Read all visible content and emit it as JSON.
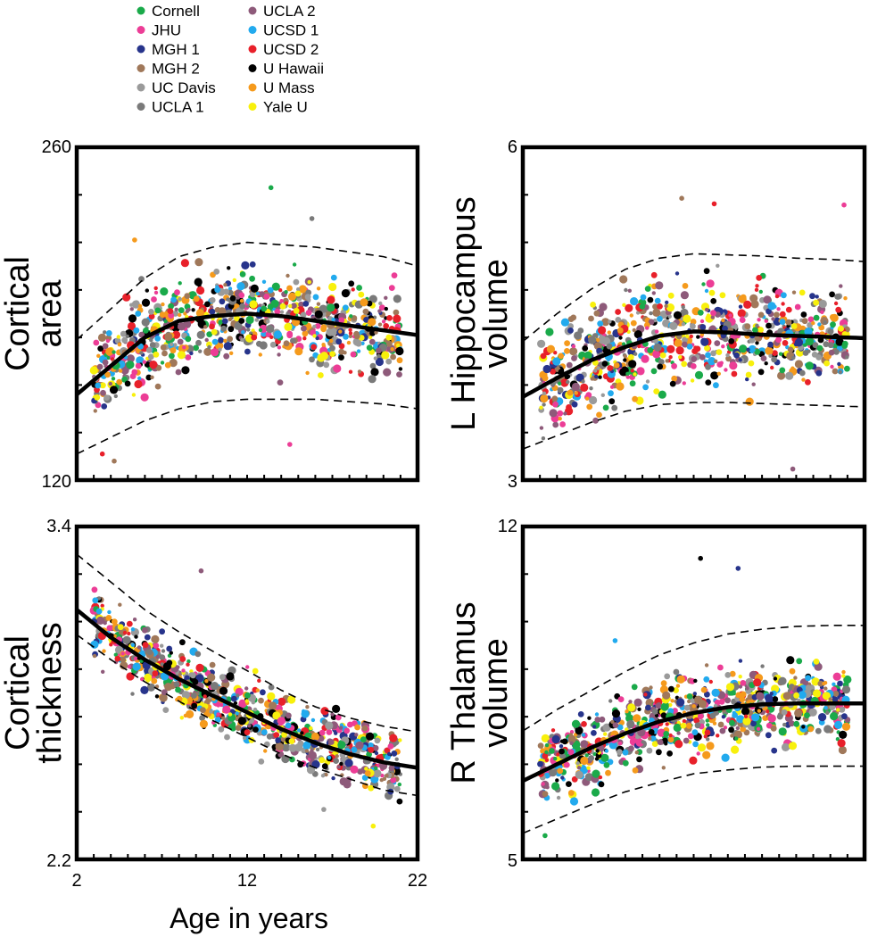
{
  "legend": [
    {
      "label": "Cornell",
      "color": "#1aaa4a"
    },
    {
      "label": "JHU",
      "color": "#ec3d96"
    },
    {
      "label": "MGH 1",
      "color": "#27348b"
    },
    {
      "label": "MGH 2",
      "color": "#a0785a"
    },
    {
      "label": "UC Davis",
      "color": "#9a9a9a"
    },
    {
      "label": "UCLA 1",
      "color": "#7a7a7a"
    },
    {
      "label": "UCLA 2",
      "color": "#8e5a7a"
    },
    {
      "label": "UCSD 1",
      "color": "#22aaee"
    },
    {
      "label": "UCSD 2",
      "color": "#e8202a"
    },
    {
      "label": "U Hawaii",
      "color": "#000000"
    },
    {
      "label": "U Mass",
      "color": "#f59a1c"
    },
    {
      "label": "Yale U",
      "color": "#f8f00c"
    }
  ],
  "xlabel": "Age in years",
  "chart_data": [
    {
      "type": "scatter",
      "title": "",
      "ylabel_lines": [
        "Cortical",
        "area"
      ],
      "xlim": [
        2,
        22
      ],
      "ylim": [
        120,
        260
      ],
      "y_tick_labels": [
        "120",
        "260"
      ],
      "x_tick_labels": [],
      "fit": {
        "x": [
          2,
          4,
          6,
          8,
          10,
          12,
          14,
          16,
          18,
          20,
          22
        ],
        "median": [
          156,
          168,
          180,
          187,
          189,
          190,
          189,
          187,
          185,
          183,
          181
        ],
        "lower": [
          131,
          138,
          145,
          150,
          153,
          154,
          154,
          154,
          153,
          152,
          150
        ],
        "upper": [
          179,
          192,
          205,
          214,
          218,
          220,
          219,
          218,
          216,
          214,
          210
        ]
      },
      "scatter": {
        "age_range": [
          3,
          21
        ],
        "spread": 10,
        "outliers": [
          [
            13.4,
            243
          ],
          [
            15.8,
            230
          ],
          [
            5.4,
            221
          ],
          [
            4.2,
            128
          ],
          [
            3.5,
            131
          ],
          [
            14.5,
            135
          ]
        ]
      }
    },
    {
      "type": "scatter",
      "title": "",
      "ylabel_lines": [
        "L Hippocampus",
        "volume"
      ],
      "xlim": [
        2,
        22
      ],
      "ylim": [
        3,
        6
      ],
      "y_tick_labels": [
        "3",
        "6"
      ],
      "x_tick_labels": [],
      "fit": {
        "x": [
          2,
          4,
          6,
          8,
          10,
          12,
          14,
          16,
          18,
          20,
          22
        ],
        "median": [
          3.75,
          3.92,
          4.08,
          4.2,
          4.3,
          4.34,
          4.33,
          4.31,
          4.3,
          4.29,
          4.28
        ],
        "lower": [
          3.28,
          3.4,
          3.52,
          3.62,
          3.68,
          3.7,
          3.7,
          3.69,
          3.68,
          3.67,
          3.66
        ],
        "upper": [
          4.25,
          4.5,
          4.72,
          4.9,
          5.0,
          5.04,
          5.03,
          5.02,
          5.0,
          4.99,
          4.97
        ]
      },
      "scatter": {
        "age_range": [
          3,
          21
        ],
        "spread": 0.24,
        "outliers": [
          [
            11.3,
            5.54
          ],
          [
            13.2,
            5.49
          ],
          [
            20.8,
            5.48
          ],
          [
            17.8,
            3.1
          ]
        ]
      }
    },
    {
      "type": "scatter",
      "title": "",
      "ylabel_lines": [
        "Cortical",
        "thickness"
      ],
      "xlim": [
        2,
        22
      ],
      "ylim": [
        2.2,
        3.4
      ],
      "y_tick_labels": [
        "2.2",
        "3.4"
      ],
      "x_tick_labels": [
        "2",
        "12",
        "22"
      ],
      "fit": {
        "x": [
          2,
          4,
          6,
          8,
          10,
          12,
          14,
          16,
          18,
          20,
          22
        ],
        "median": [
          3.1,
          3.0,
          2.92,
          2.85,
          2.79,
          2.73,
          2.67,
          2.62,
          2.58,
          2.55,
          2.53
        ],
        "lower": [
          3.01,
          2.92,
          2.84,
          2.77,
          2.7,
          2.64,
          2.58,
          2.53,
          2.49,
          2.45,
          2.43
        ],
        "upper": [
          3.3,
          3.2,
          3.1,
          3.02,
          2.95,
          2.88,
          2.81,
          2.75,
          2.71,
          2.68,
          2.66
        ]
      },
      "scatter": {
        "age_range": [
          3,
          21
        ],
        "spread": 0.065,
        "outliers": [
          [
            9.3,
            3.24
          ],
          [
            19.4,
            2.32
          ],
          [
            16.5,
            2.38
          ]
        ]
      }
    },
    {
      "type": "scatter",
      "title": "",
      "ylabel_lines": [
        "R Thalamus",
        "volume"
      ],
      "xlim": [
        2,
        22
      ],
      "ylim": [
        5,
        12
      ],
      "y_tick_labels": [
        "5",
        "12"
      ],
      "x_tick_labels": [],
      "fit": {
        "x": [
          2,
          4,
          6,
          8,
          10,
          12,
          14,
          16,
          18,
          20,
          22
        ],
        "median": [
          6.65,
          7.0,
          7.35,
          7.65,
          7.9,
          8.08,
          8.2,
          8.26,
          8.28,
          8.28,
          8.28
        ],
        "lower": [
          5.55,
          5.85,
          6.15,
          6.42,
          6.62,
          6.8,
          6.88,
          6.94,
          6.96,
          6.96,
          6.96
        ],
        "upper": [
          7.7,
          8.15,
          8.55,
          8.95,
          9.3,
          9.55,
          9.74,
          9.84,
          9.9,
          9.92,
          9.92
        ]
      },
      "scatter": {
        "age_range": [
          3,
          21
        ],
        "spread": 0.42,
        "outliers": [
          [
            12.4,
            11.33
          ],
          [
            14.6,
            11.12
          ],
          [
            7.4,
            9.6
          ],
          [
            3.3,
            5.5
          ]
        ]
      }
    }
  ]
}
